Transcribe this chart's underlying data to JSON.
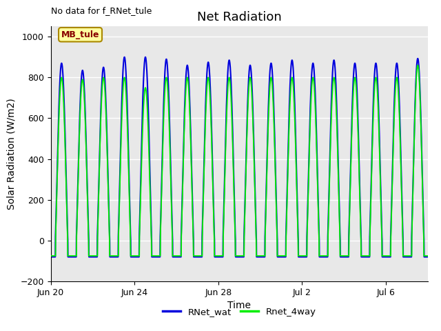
{
  "title": "Net Radiation",
  "xlabel": "Time",
  "ylabel": "Solar Radiation (W/m2)",
  "annotation": "No data for f_RNet_tule",
  "legend_label": "MB_tule",
  "ylim": [
    -200,
    1050
  ],
  "xlim_days": [
    0,
    18
  ],
  "x_tick_labels": [
    "Jun 20",
    "Jun 24",
    "Jun 28",
    "Jul 2",
    "Jul 6"
  ],
  "x_tick_positions": [
    0,
    4,
    8,
    12,
    16
  ],
  "line1_color": "#0000dd",
  "line2_color": "#00ee00",
  "line1_label": "RNet_wat",
  "line2_label": "Rnet_4way",
  "bg_color": "#e8e8e8",
  "title_fontsize": 13,
  "axis_label_fontsize": 10,
  "n_cycles": 18,
  "pts_per_day": 288,
  "night_blue": -80,
  "night_green": -75,
  "day_start": 0.22,
  "day_end": 0.82,
  "peak_vals_blue": [
    870,
    835,
    850,
    900,
    900,
    890,
    860,
    875,
    885,
    860,
    870,
    885,
    870,
    885,
    870,
    870,
    870,
    893
  ],
  "peak_vals_green": [
    800,
    790,
    800,
    800,
    750,
    800,
    800,
    800,
    800,
    800,
    800,
    800,
    800,
    800,
    800,
    800,
    800,
    860
  ]
}
